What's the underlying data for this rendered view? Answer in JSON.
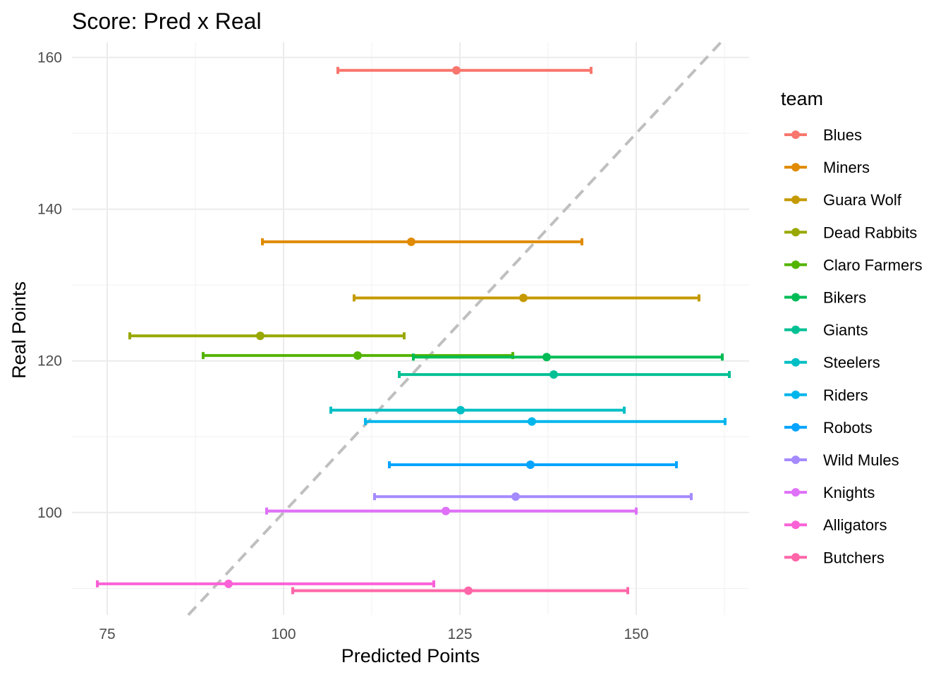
{
  "chart_data": {
    "type": "errorbar",
    "title": "Score: Pred x Real",
    "xlabel": "Predicted Points",
    "ylabel": "Real Points",
    "xlim": [
      70,
      166
    ],
    "ylim": [
      86.5,
      162
    ],
    "xticks": [
      75,
      100,
      125,
      150
    ],
    "yticks": [
      100,
      120,
      140,
      160
    ],
    "grid": true,
    "reference_line": {
      "slope": 1,
      "intercept": 0,
      "style": "dashed",
      "color": "#bfbfbf"
    },
    "legend": {
      "title": "team",
      "position": "right"
    },
    "series": [
      {
        "name": "Blues",
        "color": "#F8766D",
        "x": 124.5,
        "xmin": 107.7,
        "xmax": 143.6,
        "y": 158.3
      },
      {
        "name": "Miners",
        "color": "#E08B00",
        "x": 118.1,
        "xmin": 97.0,
        "xmax": 142.3,
        "y": 135.7
      },
      {
        "name": "Guara Wolf",
        "color": "#C49A00",
        "x": 134.0,
        "xmin": 110.0,
        "xmax": 158.9,
        "y": 128.3
      },
      {
        "name": "Dead Rabbits",
        "color": "#99A800",
        "x": 96.7,
        "xmin": 78.2,
        "xmax": 117.1,
        "y": 123.3
      },
      {
        "name": "Claro Farmers",
        "color": "#53B400",
        "x": 110.5,
        "xmin": 88.6,
        "xmax": 132.5,
        "y": 120.7
      },
      {
        "name": "Bikers",
        "color": "#00BC56",
        "x": 137.3,
        "xmin": 118.4,
        "xmax": 162.2,
        "y": 120.5
      },
      {
        "name": "Giants",
        "color": "#00C094",
        "x": 138.3,
        "xmin": 116.4,
        "xmax": 163.2,
        "y": 118.2
      },
      {
        "name": "Steelers",
        "color": "#00BFC4",
        "x": 125.1,
        "xmin": 106.7,
        "xmax": 148.3,
        "y": 113.5
      },
      {
        "name": "Riders",
        "color": "#00B6EB",
        "x": 135.2,
        "xmin": 111.6,
        "xmax": 162.6,
        "y": 112.0
      },
      {
        "name": "Robots",
        "color": "#06A4FF",
        "x": 135.0,
        "xmin": 115.0,
        "xmax": 155.7,
        "y": 106.3
      },
      {
        "name": "Wild Mules",
        "color": "#A58AFF",
        "x": 132.9,
        "xmin": 112.9,
        "xmax": 157.8,
        "y": 102.1
      },
      {
        "name": "Knights",
        "color": "#DF70F8",
        "x": 123.0,
        "xmin": 97.6,
        "xmax": 150.0,
        "y": 100.2
      },
      {
        "name": "Alligators",
        "color": "#FB61D7",
        "x": 92.2,
        "xmin": 73.6,
        "xmax": 121.3,
        "y": 90.6
      },
      {
        "name": "Butchers",
        "color": "#FF66A8",
        "x": 126.2,
        "xmin": 101.3,
        "xmax": 148.8,
        "y": 89.7
      }
    ]
  }
}
